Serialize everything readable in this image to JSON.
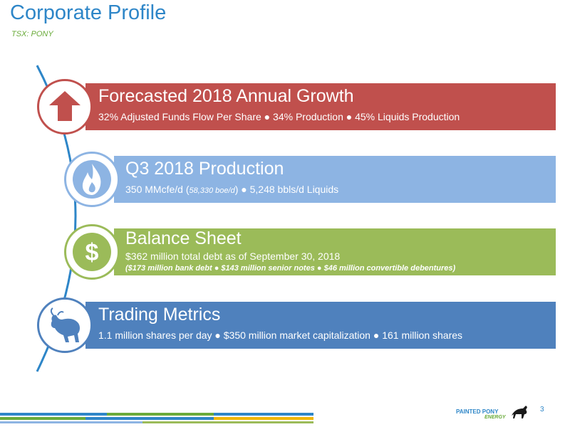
{
  "header": {
    "title": "Corporate Profile",
    "subtitle": "TSX: PONY"
  },
  "items": [
    {
      "heading": "Forecasted 2018 Annual Growth",
      "detail": "32% Adjusted Funds Flow Per Share ● 34% Production ● 45% Liquids Production",
      "icon": "up-arrow-icon",
      "color": "#c0504d"
    },
    {
      "heading": "Q3 2018 Production",
      "detail_a": "350 MMcfe/d (",
      "detail_b": "58,330 boe/d",
      "detail_c": ") ● 5,248 bbls/d Liquids",
      "icon": "flame-icon",
      "color": "#8db4e3"
    },
    {
      "heading": "Balance Sheet",
      "detail": "$362 million total debt as of September 30, 2018",
      "detail2": "($173 million bank debt ● $143 million senior notes ● $46 million convertible debentures)",
      "icon": "dollar-icon",
      "color": "#9bbb59"
    },
    {
      "heading": "Trading Metrics",
      "detail": "1.1 million shares per day ● $350 million market capitalization ● 161 million shares",
      "icon": "bull-icon",
      "color": "#4f81bd"
    }
  ],
  "footer": {
    "logo_line1": "PAINTED PONY",
    "logo_line2": "ENERGY",
    "page_number": "3"
  }
}
